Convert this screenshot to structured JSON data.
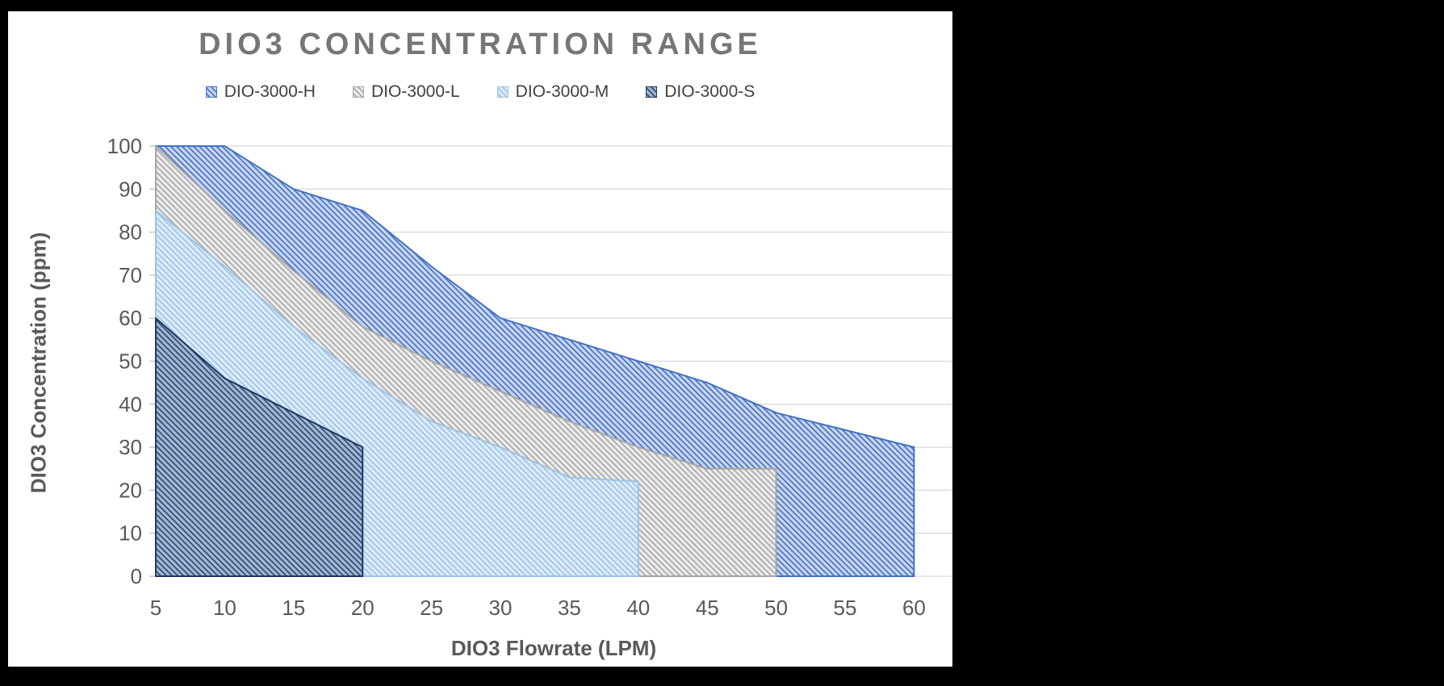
{
  "title": "DIO3 CONCENTRATION RANGE",
  "chart_data": {
    "type": "area",
    "title": "DIO3 CONCENTRATION RANGE",
    "xlabel": "DIO3 Flowrate (LPM)",
    "ylabel": "DIO3 Concentration (ppm)",
    "x_ticks": [
      5,
      10,
      15,
      20,
      25,
      30,
      35,
      40,
      45,
      50,
      55,
      60
    ],
    "ylim": [
      0,
      100
    ],
    "y_tick_step": 10,
    "grid": true,
    "legend_position": "top",
    "overlap_order_back_to_front": [
      "DIO-3000-H",
      "DIO-3000-L",
      "DIO-3000-M",
      "DIO-3000-S"
    ],
    "series": [
      {
        "name": "DIO-3000-H",
        "x": [
          5,
          10,
          15,
          20,
          25,
          30,
          35,
          40,
          45,
          50,
          55,
          60
        ],
        "values": [
          100,
          100,
          90,
          85,
          72,
          60,
          55,
          50,
          45,
          38,
          34,
          30
        ],
        "line_color": "#4472c4",
        "hatch_color": "#4472c4",
        "hatch_bg": "#cbd6ef"
      },
      {
        "name": "DIO-3000-L",
        "x": [
          5,
          10,
          15,
          20,
          25,
          30,
          35,
          40,
          45,
          50
        ],
        "values": [
          100,
          85,
          71,
          58,
          50,
          43,
          36,
          30,
          25,
          25
        ],
        "line_color": "#a6a6a6",
        "hatch_color": "#a6a6a6",
        "hatch_bg": "#ececec"
      },
      {
        "name": "DIO-3000-M",
        "x": [
          5,
          10,
          15,
          20,
          25,
          30,
          35,
          40
        ],
        "values": [
          85,
          72,
          58,
          46,
          36,
          30,
          23,
          22
        ],
        "line_color": "#9dc3e6",
        "hatch_color": "#9dc3e6",
        "hatch_bg": "#ddebf8"
      },
      {
        "name": "DIO-3000-S",
        "x": [
          5,
          10,
          15,
          20
        ],
        "values": [
          60,
          46,
          38,
          30
        ],
        "line_color": "#203864",
        "hatch_color": "#1f4e79",
        "hatch_bg": "#a9b6cf"
      }
    ],
    "colors": {
      "gridline": "#d9d9d9",
      "tick_mark": "#bfbfbf",
      "tick_label": "#595959",
      "axis_title": "#595959",
      "chart_title": "#767676",
      "legend_text": "#404040",
      "background": "#ffffff",
      "page_background": "#000000"
    }
  }
}
